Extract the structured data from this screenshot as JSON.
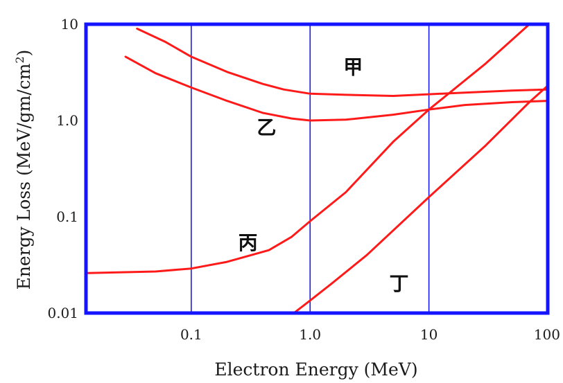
{
  "chart_data": {
    "type": "line",
    "x_scale": "log",
    "y_scale": "log",
    "xlim": [
      0.013,
      100
    ],
    "ylim": [
      0.01,
      10
    ],
    "xlabel": "Electron Energy (MeV)",
    "ylabel_main": "Energy Loss (MeV/gm/cm",
    "ylabel_sup": "2",
    "ylabel_tail": ")",
    "x_ticks": [
      {
        "value": 0.1,
        "label": "0.1"
      },
      {
        "value": 1,
        "label": "1.0"
      },
      {
        "value": 10,
        "label": "10"
      },
      {
        "value": 100,
        "label": "100"
      }
    ],
    "y_ticks": [
      {
        "value": 0.01,
        "label": "0.01"
      },
      {
        "value": 0.1,
        "label": "0.1"
      },
      {
        "value": 1,
        "label": "1.0"
      },
      {
        "value": 10,
        "label": "10"
      }
    ],
    "vertical_gridlines": [
      0.1,
      1,
      10
    ],
    "frame_color": "#1414ff",
    "gridline_color": "#1a1aee",
    "series": [
      {
        "name": "甲",
        "color": "#ff1a1a",
        "label_at": [
          2.3,
          3.45
        ],
        "points": [
          [
            0.035,
            9.0
          ],
          [
            0.06,
            6.6
          ],
          [
            0.1,
            4.6
          ],
          [
            0.2,
            3.2
          ],
          [
            0.4,
            2.4
          ],
          [
            0.6,
            2.1
          ],
          [
            1.0,
            1.9
          ],
          [
            2.0,
            1.85
          ],
          [
            5.0,
            1.8
          ],
          [
            8.0,
            1.85
          ],
          [
            20.0,
            1.95
          ],
          [
            50.0,
            2.05
          ],
          [
            100.0,
            2.1
          ]
        ]
      },
      {
        "name": "乙",
        "color": "#ff1a1a",
        "label_at": [
          0.43,
          0.82
        ],
        "points": [
          [
            0.028,
            4.6
          ],
          [
            0.05,
            3.1
          ],
          [
            0.1,
            2.2
          ],
          [
            0.2,
            1.6
          ],
          [
            0.4,
            1.2
          ],
          [
            0.7,
            1.05
          ],
          [
            1.0,
            1.0
          ],
          [
            2.0,
            1.02
          ],
          [
            5.0,
            1.15
          ],
          [
            10.0,
            1.3
          ],
          [
            20.0,
            1.45
          ],
          [
            50.0,
            1.55
          ],
          [
            100.0,
            1.6
          ]
        ]
      },
      {
        "name": "丙",
        "color": "#ff1a1a",
        "label_at": [
          0.3,
          0.052
        ],
        "points": [
          [
            0.013,
            0.026
          ],
          [
            0.05,
            0.027
          ],
          [
            0.1,
            0.029
          ],
          [
            0.2,
            0.034
          ],
          [
            0.45,
            0.045
          ],
          [
            0.7,
            0.062
          ],
          [
            1.0,
            0.09
          ],
          [
            2.0,
            0.18
          ],
          [
            5.0,
            0.6
          ],
          [
            10.0,
            1.3
          ],
          [
            30.0,
            3.9
          ],
          [
            70.0,
            10.0
          ]
        ]
      },
      {
        "name": "丁",
        "color": "#ff1a1a",
        "label_at": [
          5.6,
          0.0195
        ],
        "points": [
          [
            0.73,
            0.01
          ],
          [
            1.0,
            0.0135
          ],
          [
            1.5,
            0.02
          ],
          [
            3.0,
            0.04
          ],
          [
            10.0,
            0.16
          ],
          [
            30.0,
            0.55
          ],
          [
            70.0,
            1.55
          ],
          [
            100.0,
            2.3
          ]
        ]
      }
    ]
  }
}
